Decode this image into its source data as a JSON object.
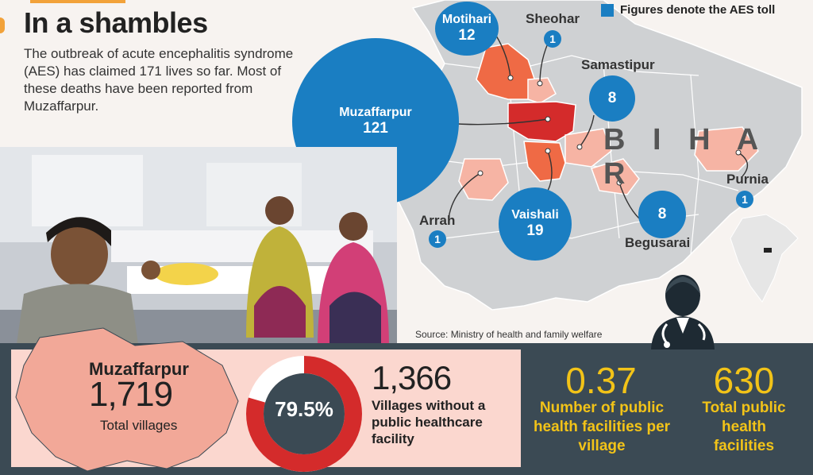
{
  "header": {
    "title": "In a shambles",
    "intro": "The outbreak of acute encephalitis syndrome (AES) has claimed 171 lives so far. Most of these deaths have been reported from Muzaffarpur."
  },
  "map": {
    "legend": "Figures denote the AES toll",
    "state_label": "B I H A R",
    "source": "Source: Ministry of health and family welfare",
    "districts": [
      {
        "name": "Muzaffarpur",
        "toll": "121"
      },
      {
        "name": "Vaishali",
        "toll": "19"
      },
      {
        "name": "Motihari",
        "toll": "12"
      },
      {
        "name": "Samastipur",
        "toll": "8"
      },
      {
        "name": "Begusarai",
        "toll": "8"
      },
      {
        "name": "Sheohar",
        "toll": "1"
      },
      {
        "name": "Arrah",
        "toll": "1"
      },
      {
        "name": "Purnia",
        "toll": "1"
      }
    ]
  },
  "stats": {
    "district_name": "Muzaffarpur",
    "total_villages": "1,719",
    "total_villages_label": "Total villages",
    "no_facility_percent": "79.5%",
    "no_facility_fraction": 0.795,
    "no_facility_count": "1,366",
    "no_facility_label": "Villages without a public healthcare facility",
    "facilities_per_village": "0.37",
    "facilities_per_village_label": "Number of public health facilities per village",
    "total_facilities": "630",
    "total_facilities_label": "Total public health facilities"
  },
  "colors": {
    "bubble": "#1a7ec2",
    "high": "#d42b2b",
    "mid": "#ef6a45",
    "low": "#f6b4a4",
    "map_base": "#cfd1d3",
    "panel": "#3b4a54",
    "accent": "#f2c318"
  }
}
